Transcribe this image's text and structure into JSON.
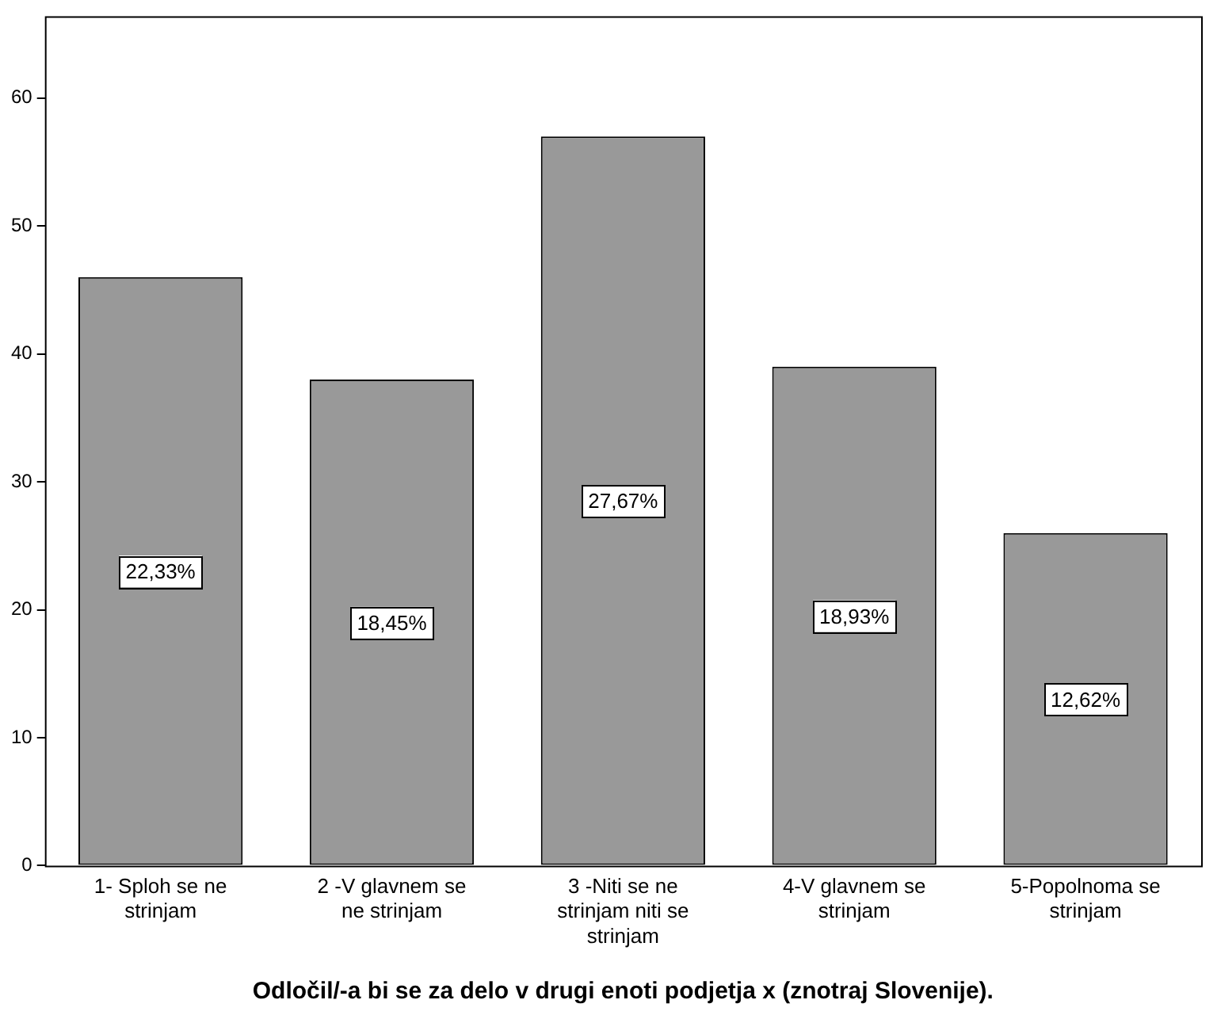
{
  "chart_data": {
    "type": "bar",
    "xlabel": "Odločil/-a bi se za delo v drugi enoti podjetja x (znotraj Slovenije).",
    "categories": [
      "1- Sploh se ne strinjam",
      "2 -V glavnem se ne strinjam",
      "3 -Niti se ne strinjam niti se strinjam",
      "4-V glavnem se strinjam",
      "5-Popolnoma se strinjam"
    ],
    "values": [
      46,
      38,
      57,
      39,
      26
    ],
    "annotations": [
      "22,33%",
      "18,45%",
      "27,67%",
      "18,93%",
      "12,62%"
    ],
    "color": "#999999",
    "ylim": [
      0,
      66.4
    ],
    "yticks": [
      0,
      10,
      20,
      30,
      40,
      50,
      60
    ],
    "grid": false,
    "legend": false
  }
}
